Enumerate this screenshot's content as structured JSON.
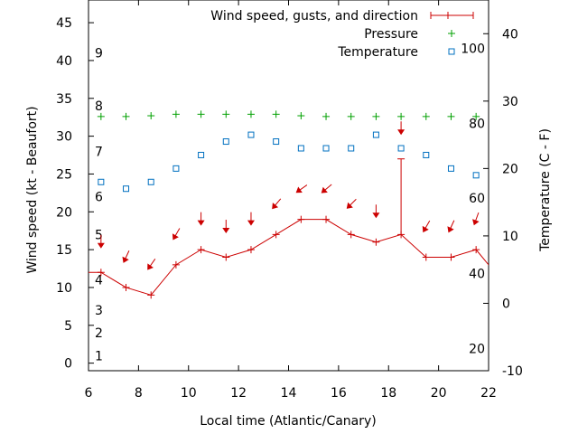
{
  "chart_data": {
    "type": "line",
    "xlabel": "Local time (Atlantic/Canary)",
    "ylabel_left": "Wind speed (kt - Beaufort)",
    "ylabel_right": "Temperature (C - F)",
    "xlim": [
      6,
      22
    ],
    "ylim_left": [
      -1,
      48
    ],
    "ylim_right": [
      -10,
      45
    ],
    "x_ticks": [
      6,
      8,
      10,
      12,
      14,
      16,
      18,
      20,
      22
    ],
    "y_left_ticks": [
      0,
      5,
      10,
      15,
      20,
      25,
      30,
      35,
      40,
      45
    ],
    "y_right_ticks": [
      -10,
      0,
      10,
      20,
      30,
      40
    ],
    "beaufort_labels": [
      {
        "label": "1",
        "kt": 1
      },
      {
        "label": "2",
        "kt": 4
      },
      {
        "label": "3",
        "kt": 7
      },
      {
        "label": "4",
        "kt": 11
      },
      {
        "label": "5",
        "kt": 17
      },
      {
        "label": "6",
        "kt": 22
      },
      {
        "label": "7",
        "kt": 28
      },
      {
        "label": "8",
        "kt": 34
      },
      {
        "label": "9",
        "kt": 41
      }
    ],
    "fahrenheit_labels": [
      {
        "label": "20",
        "c": -6.7
      },
      {
        "label": "40",
        "c": 4.4
      },
      {
        "label": "60",
        "c": 15.6
      },
      {
        "label": "80",
        "c": 26.7
      },
      {
        "label": "100",
        "c": 37.8
      }
    ],
    "legend_position": "top-right",
    "series": [
      {
        "name": "Wind speed, gusts, and direction",
        "color": "#cc0000",
        "x": [
          5.5,
          6.5,
          7.5,
          8.5,
          9.5,
          10.5,
          11.5,
          12.5,
          13.5,
          14.5,
          15.5,
          16.5,
          17.5,
          18.5,
          19.5,
          20.5,
          21.5,
          22.5
        ],
        "y": [
          12,
          12,
          10,
          9,
          13,
          15,
          14,
          15,
          17,
          19,
          19,
          17,
          16,
          17,
          14,
          14,
          15,
          11
        ],
        "gusts": [
          {
            "x": 18.5,
            "low": 17,
            "high": 27
          }
        ],
        "direction_arrows": [
          {
            "x": 6.5,
            "y": 16,
            "angle": 0
          },
          {
            "x": 7.5,
            "y": 14,
            "angle": 25
          },
          {
            "x": 8.5,
            "y": 13,
            "angle": 35
          },
          {
            "x": 9.5,
            "y": 17,
            "angle": 30
          },
          {
            "x": 10.5,
            "y": 19,
            "angle": 0
          },
          {
            "x": 11.5,
            "y": 18,
            "angle": 0
          },
          {
            "x": 12.5,
            "y": 19,
            "angle": 0
          },
          {
            "x": 13.5,
            "y": 21,
            "angle": 40
          },
          {
            "x": 14.5,
            "y": 23,
            "angle": 55
          },
          {
            "x": 15.5,
            "y": 23,
            "angle": 50
          },
          {
            "x": 16.5,
            "y": 21,
            "angle": 45
          },
          {
            "x": 17.5,
            "y": 20,
            "angle": 0
          },
          {
            "x": 18.5,
            "y": 31,
            "angle": 0
          },
          {
            "x": 19.5,
            "y": 18,
            "angle": 30
          },
          {
            "x": 20.5,
            "y": 18,
            "angle": 25
          },
          {
            "x": 21.5,
            "y": 19,
            "angle": 20
          }
        ]
      },
      {
        "name": "Pressure",
        "color": "#00a000",
        "axis": "left",
        "x": [
          6.5,
          7.5,
          8.5,
          9.5,
          10.5,
          11.5,
          12.5,
          13.5,
          14.5,
          15.5,
          16.5,
          17.5,
          18.5,
          19.5,
          20.5,
          21.5
        ],
        "y": [
          32.6,
          32.6,
          32.7,
          32.9,
          32.9,
          32.9,
          32.9,
          32.9,
          32.7,
          32.6,
          32.6,
          32.6,
          32.6,
          32.6,
          32.6,
          32.6
        ]
      },
      {
        "name": "Temperature",
        "color": "#0070c0",
        "axis": "right",
        "x": [
          6.5,
          7.5,
          8.5,
          9.5,
          10.5,
          11.5,
          12.5,
          13.5,
          14.5,
          15.5,
          16.5,
          17.5,
          18.5,
          19.5,
          20.5,
          21.5
        ],
        "y": [
          18,
          17,
          18,
          20,
          22,
          24,
          25,
          24,
          23,
          23,
          23,
          25,
          23,
          22,
          20,
          19
        ]
      }
    ]
  }
}
